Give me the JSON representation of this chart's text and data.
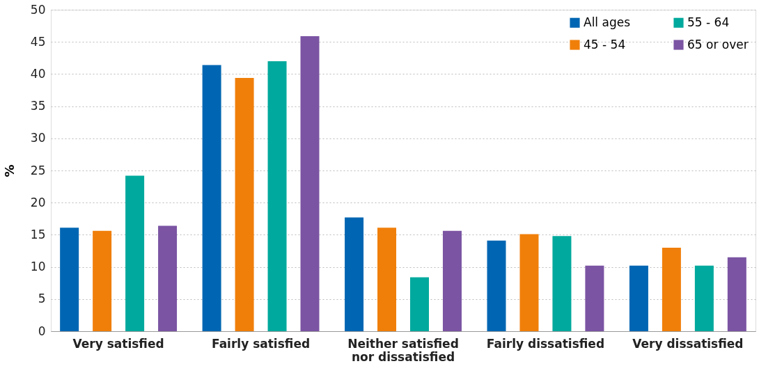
{
  "chart_data": {
    "type": "bar",
    "ylabel": "%",
    "categories": [
      "Very satisfied",
      "Fairly satisfied",
      "Neither satisfied nor dissatisfied",
      "Fairly dissatisfied",
      "Very dissatisfied"
    ],
    "series": [
      {
        "name": "All ages",
        "color": "#0066b3",
        "values": [
          16.1,
          41.4,
          17.7,
          14.1,
          10.2
        ]
      },
      {
        "name": "45 - 54",
        "color": "#f07f0a",
        "values": [
          15.6,
          39.4,
          16.1,
          15.1,
          13.0
        ]
      },
      {
        "name": "55 - 64",
        "color": "#00a99d",
        "values": [
          24.2,
          42.0,
          8.4,
          14.8,
          10.2
        ]
      },
      {
        "name": "65 or over",
        "color": "#7b54a3",
        "values": [
          16.4,
          45.9,
          15.6,
          10.2,
          11.5
        ]
      }
    ],
    "ylim": [
      0,
      50
    ],
    "yticks": [
      0,
      5,
      10,
      15,
      20,
      25,
      30,
      35,
      40,
      45,
      50
    ],
    "grid": "y",
    "legend": "top right"
  }
}
